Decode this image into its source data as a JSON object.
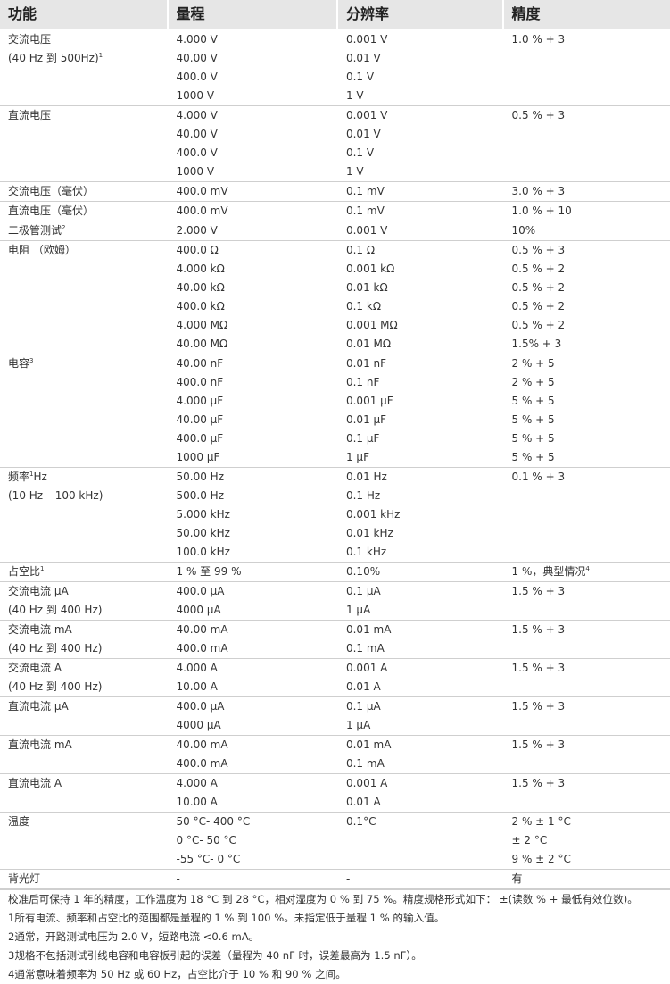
{
  "header": [
    "功能",
    "量程",
    "分辨率",
    "精度"
  ],
  "groups": [
    {
      "function": [
        "交流电压",
        {
          "text": "(40 Hz 到 500Hz)",
          "sup": "1"
        }
      ],
      "range": [
        "4.000 V",
        "40.00 V",
        "400.0 V",
        "1000 V"
      ],
      "resolution": [
        "0.001 V",
        "0.01 V",
        "0.1 V",
        "1 V"
      ],
      "accuracy": [
        "1.0 % + 3"
      ]
    },
    {
      "function": [
        "直流电压"
      ],
      "range": [
        "4.000 V",
        "40.00 V",
        "400.0 V",
        "1000 V"
      ],
      "resolution": [
        "0.001 V",
        "0.01 V",
        "0.1 V",
        "1 V"
      ],
      "accuracy": [
        "0.5 % + 3"
      ]
    },
    {
      "function": [
        "交流电压（毫伏）"
      ],
      "range": [
        "400.0 mV"
      ],
      "resolution": [
        "0.1 mV"
      ],
      "accuracy": [
        "3.0 % + 3"
      ]
    },
    {
      "function": [
        "直流电压（毫伏）"
      ],
      "range": [
        "400.0 mV"
      ],
      "resolution": [
        "0.1 mV"
      ],
      "accuracy": [
        "1.0 % + 10"
      ]
    },
    {
      "function": [
        {
          "text": "二极管测试",
          "sup": "2"
        }
      ],
      "range": [
        "2.000 V"
      ],
      "resolution": [
        "0.001 V"
      ],
      "accuracy": [
        "10%"
      ]
    },
    {
      "function": [
        "电阻 （欧姆）"
      ],
      "range": [
        "400.0 Ω",
        "4.000 kΩ",
        "40.00 kΩ",
        "400.0 kΩ",
        "4.000 MΩ",
        "40.00 MΩ"
      ],
      "resolution": [
        "0.1 Ω",
        "0.001 kΩ",
        "0.01 kΩ",
        "0.1 kΩ",
        "0.001 MΩ",
        "0.01 MΩ"
      ],
      "accuracy": [
        "0.5 % + 3",
        "0.5 % + 2",
        "0.5 % + 2",
        "0.5 % + 2",
        "0.5 % + 2",
        "1.5% + 3"
      ]
    },
    {
      "function": [
        {
          "text": "电容",
          "sup": "3"
        }
      ],
      "range": [
        "40.00 nF",
        "400.0 nF",
        "4.000 μF",
        "40.00 μF",
        "400.0 μF",
        "1000 μF"
      ],
      "resolution": [
        "0.01 nF",
        "0.1 nF",
        "0.001 μF",
        "0.01 μF",
        "0.1 μF",
        "1 μF"
      ],
      "accuracy": [
        "2 % + 5",
        "2 % + 5",
        "5 % + 5",
        "5 % + 5",
        "5 % + 5",
        "5 % + 5"
      ]
    },
    {
      "function": [
        {
          "text": "频率",
          "sup": "1",
          "after": "Hz"
        },
        "(10 Hz – 100 kHz)"
      ],
      "range": [
        "50.00 Hz",
        "500.0 Hz",
        "5.000 kHz",
        "50.00 kHz",
        "100.0 kHz"
      ],
      "resolution": [
        "0.01 Hz",
        "0.1 Hz",
        "0.001 kHz",
        "0.01 kHz",
        "0.1 kHz"
      ],
      "accuracy": [
        "0.1 % + 3"
      ]
    },
    {
      "function": [
        {
          "text": "占空比",
          "sup": "1"
        }
      ],
      "range": [
        "1 % 至 99 %"
      ],
      "resolution": [
        "0.10%"
      ],
      "accuracy": [
        {
          "text": "1 %，典型情况",
          "sup": "4"
        }
      ]
    },
    {
      "function": [
        "交流电流 μA",
        "(40 Hz 到 400 Hz)"
      ],
      "range": [
        "400.0 μA",
        "4000 μA"
      ],
      "resolution": [
        "0.1 μA",
        "1 μA"
      ],
      "accuracy": [
        "1.5 % + 3"
      ]
    },
    {
      "function": [
        "交流电流 mA",
        "(40 Hz 到 400 Hz)"
      ],
      "range": [
        "40.00 mA",
        "400.0 mA"
      ],
      "resolution": [
        "0.01 mA",
        "0.1 mA"
      ],
      "accuracy": [
        "1.5 % + 3"
      ]
    },
    {
      "function": [
        "交流电流 A",
        "(40 Hz 到 400 Hz)"
      ],
      "range": [
        "4.000 A",
        "10.00 A"
      ],
      "resolution": [
        "0.001 A",
        "0.01 A"
      ],
      "accuracy": [
        "1.5 % + 3"
      ]
    },
    {
      "function": [
        "直流电流 μA"
      ],
      "range": [
        "400.0 μA",
        "4000 μA"
      ],
      "resolution": [
        "0.1 μA",
        "1 μA"
      ],
      "accuracy": [
        "1.5 % + 3"
      ]
    },
    {
      "function": [
        "直流电流 mA"
      ],
      "range": [
        "40.00 mA",
        "400.0 mA"
      ],
      "resolution": [
        "0.01 mA",
        "0.1 mA"
      ],
      "accuracy": [
        "1.5 % + 3"
      ]
    },
    {
      "function": [
        "直流电流 A"
      ],
      "range": [
        "4.000 A",
        "10.00 A"
      ],
      "resolution": [
        "0.001 A",
        "0.01 A"
      ],
      "accuracy": [
        "1.5 % + 3"
      ]
    },
    {
      "function": [
        "温度"
      ],
      "range": [
        "50 °C- 400 °C",
        "0 °C- 50 °C",
        "-55 °C- 0 °C"
      ],
      "resolution": [
        "0.1°C"
      ],
      "accuracy": [
        "2 % ± 1 °C",
        "± 2 °C",
        "9 % ± 2 °C"
      ]
    },
    {
      "function": [
        "背光灯"
      ],
      "range": [
        "-"
      ],
      "resolution": [
        "-"
      ],
      "accuracy": [
        "有"
      ]
    }
  ],
  "notes": [
    "校准后可保持 1 年的精度，工作温度为 18 °C 到 28 °C，相对湿度为 0 % 到 75 %。精度规格形式如下： ±(读数 % + 最低有效位数)。",
    "1所有电流、频率和占空比的范围都是量程的 1 % 到 100 %。未指定低于量程 1 % 的输入值。",
    "2通常，开路测试电压为 2.0 V，短路电流 <0.6 mA。",
    "3规格不包括测试引线电容和电容板引起的误差（量程为 40 nF 时，误差最高为 1.5 nF）。",
    "4通常意味着频率为 50 Hz 或 60 Hz，占空比介于 10 % 和 90 % 之间。"
  ]
}
